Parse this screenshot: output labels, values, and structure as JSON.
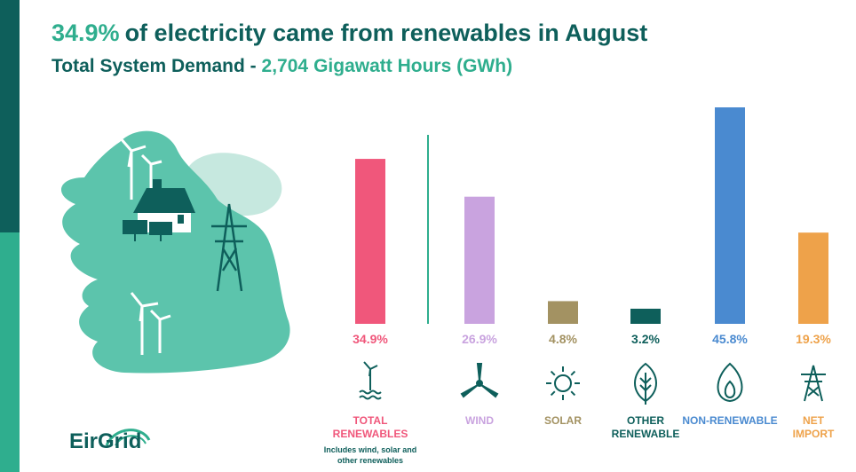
{
  "header": {
    "title_pct": "34.9%",
    "title_rest": "of electricity came from renewables in August",
    "subtitle_prefix": "Total System Demand -",
    "subtitle_value": "2,704",
    "subtitle_unit": "Gigawatt Hours (GWh)"
  },
  "logo": {
    "text": "EirGrid"
  },
  "colors": {
    "dark_teal": "#0e5f5b",
    "green": "#2fae8e",
    "map": "#5cc4ac"
  },
  "chart_data": {
    "type": "bar",
    "title": "",
    "xlabel": "",
    "ylabel": "",
    "ylim": [
      0,
      50
    ],
    "categories": [
      {
        "label": [
          "TOTAL",
          "RENEWABLES"
        ],
        "note": [
          "Includes wind, solar and",
          "other renewables"
        ],
        "value": 34.9,
        "value_label": "34.9%",
        "color": "#f0577b",
        "label_color": "#f0577b",
        "icon": "turbine-water-icon"
      },
      {
        "label": [
          "WIND"
        ],
        "value": 26.9,
        "value_label": "26.9%",
        "color": "#c9a3df",
        "label_color": "#c9a3df",
        "icon": "wind-blades-icon"
      },
      {
        "label": [
          "SOLAR"
        ],
        "value": 4.8,
        "value_label": "4.8%",
        "color": "#a39262",
        "label_color": "#a39262",
        "icon": "sun-icon"
      },
      {
        "label": [
          "OTHER",
          "RENEWABLE"
        ],
        "value": 3.2,
        "value_label": "3.2%",
        "color": "#0e5f5b",
        "label_color": "#0e5f5b",
        "icon": "leaf-icon"
      },
      {
        "label": [
          "NON-RENEWABLE"
        ],
        "value": 45.8,
        "value_label": "45.8%",
        "color": "#4a8ad0",
        "label_color": "#4a8ad0",
        "icon": "flame-icon"
      },
      {
        "label": [
          "NET",
          "IMPORT"
        ],
        "value": 19.3,
        "value_label": "19.3%",
        "color": "#eea24a",
        "label_color": "#eea24a",
        "icon": "pylon-icon"
      }
    ]
  }
}
